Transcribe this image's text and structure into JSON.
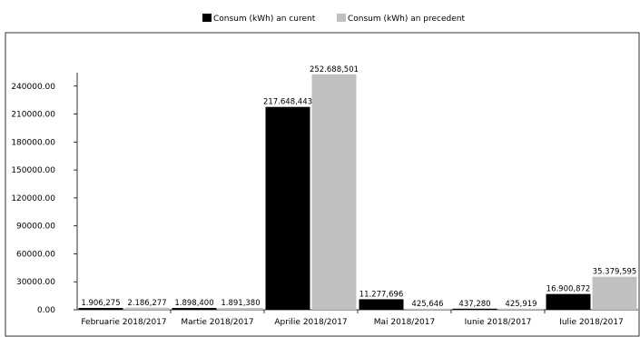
{
  "chart_data": {
    "type": "bar",
    "categories": [
      "Februarie 2018/2017",
      "Martie 2018/2017",
      "Aprilie 2018/2017",
      "Mai 2018/2017",
      "Iunie 2018/2017",
      "Iulie 2018/2017"
    ],
    "series": [
      {
        "name": "Consum (kWh) an curent",
        "color": "#000000",
        "values": [
          1906.275,
          1898.4,
          217648.443,
          11277.696,
          437.28,
          16900.872
        ],
        "labels": [
          "1.906,275",
          "1.898,400",
          "217.648,443",
          "11.277,696",
          "437,280",
          "16.900,872"
        ]
      },
      {
        "name": "Consum (kWh) an precedent",
        "color": "#c0c0c0",
        "values": [
          2186.277,
          1891.38,
          252688.501,
          425.646,
          425.919,
          35379.595
        ],
        "labels": [
          "2.186,277",
          "1.891,380",
          "252.688,501",
          "425,646",
          "425,919",
          "35.379,595"
        ]
      }
    ],
    "ylim": [
      0,
      270000
    ],
    "yticks": [
      0,
      30000,
      60000,
      90000,
      120000,
      150000,
      180000,
      210000,
      240000
    ],
    "ytick_labels": [
      "0.00",
      "30000.00",
      "60000.00",
      "90000.00",
      "120000.00",
      "150000.00",
      "180000.00",
      "210000.00",
      "240000.00"
    ],
    "legend_position": "top-center",
    "grid": false
  }
}
